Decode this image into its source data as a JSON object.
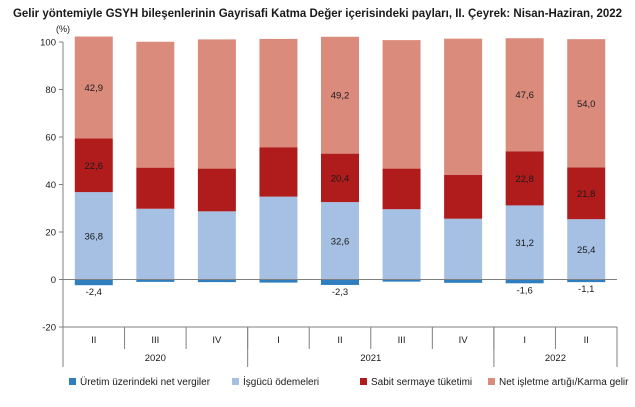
{
  "chart_data": {
    "type": "bar",
    "stacked": true,
    "title": "Gelir yöntemiyle GSYH bileşenlerinin Gayrisafi Katma Değer içerisindeki payları, II. Çeyrek: Nisan-Haziran, 2022",
    "ylabel": "(%)",
    "ylim": [
      -20,
      100
    ],
    "yticks": [
      "-20",
      "0",
      "20",
      "40",
      "60",
      "80",
      "100"
    ],
    "grid": false,
    "legend_position": "bottom",
    "categories": [
      "II",
      "III",
      "IV",
      "I",
      "II",
      "III",
      "IV",
      "I",
      "II"
    ],
    "year_groups": [
      {
        "label": "2020",
        "count": 3
      },
      {
        "label": "2021",
        "count": 4
      },
      {
        "label": "2022",
        "count": 2
      }
    ],
    "series": [
      {
        "name": "Üretim üzerindeki net vergiler",
        "color": "#2f7ebf",
        "values": [
          -2.4,
          -1.0,
          -1.1,
          -1.3,
          -2.3,
          -0.9,
          -1.4,
          -1.6,
          -1.1
        ],
        "labels": [
          "-2,4",
          "",
          "",
          "",
          "-2,3",
          "",
          "",
          "-1,6",
          "-1,1"
        ]
      },
      {
        "name": "İşgücü ödemeleri",
        "color": "#a6c0e3",
        "values": [
          36.8,
          29.8,
          28.7,
          34.9,
          32.6,
          29.6,
          25.6,
          31.2,
          25.4
        ],
        "labels": [
          "36,8",
          "",
          "",
          "",
          "32,6",
          "",
          "",
          "31,2",
          "25,4"
        ]
      },
      {
        "name": "Sabit sermaye tüketimi",
        "color": "#b01b1b",
        "values": [
          22.6,
          17.3,
          18.0,
          20.8,
          20.4,
          17.1,
          18.5,
          22.8,
          21.8
        ],
        "labels": [
          "22,6",
          "",
          "",
          "",
          "20,4",
          "",
          "",
          "22,8",
          "21,8"
        ]
      },
      {
        "name": "Net işletme artığı/Karma gelir",
        "color": "#da8b7c",
        "values": [
          42.9,
          53.0,
          54.4,
          45.6,
          49.2,
          54.1,
          57.3,
          47.6,
          54.0
        ],
        "labels": [
          "42,9",
          "",
          "",
          "",
          "49,2",
          "",
          "",
          "47,6",
          "54,0"
        ]
      }
    ]
  }
}
